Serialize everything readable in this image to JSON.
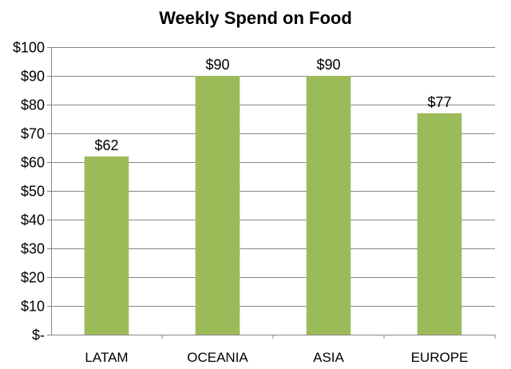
{
  "chart_data": {
    "type": "bar",
    "title": "Weekly Spend on Food",
    "xlabel": "",
    "ylabel": "",
    "categories": [
      "LATAM",
      "OCEANIA",
      "ASIA",
      "EUROPE"
    ],
    "values": [
      62,
      90,
      90,
      77
    ],
    "data_labels": [
      "$62",
      "$90",
      "$90",
      "$77"
    ],
    "ylim": [
      0,
      100
    ],
    "yticks": [
      0,
      10,
      20,
      30,
      40,
      50,
      60,
      70,
      80,
      90,
      100
    ],
    "ytick_labels": [
      "$-",
      "$10",
      "$20",
      "$30",
      "$40",
      "$50",
      "$60",
      "$70",
      "$80",
      "$90",
      "$100"
    ],
    "bar_color": "#9BBB59",
    "grid": true,
    "legend": "none"
  }
}
